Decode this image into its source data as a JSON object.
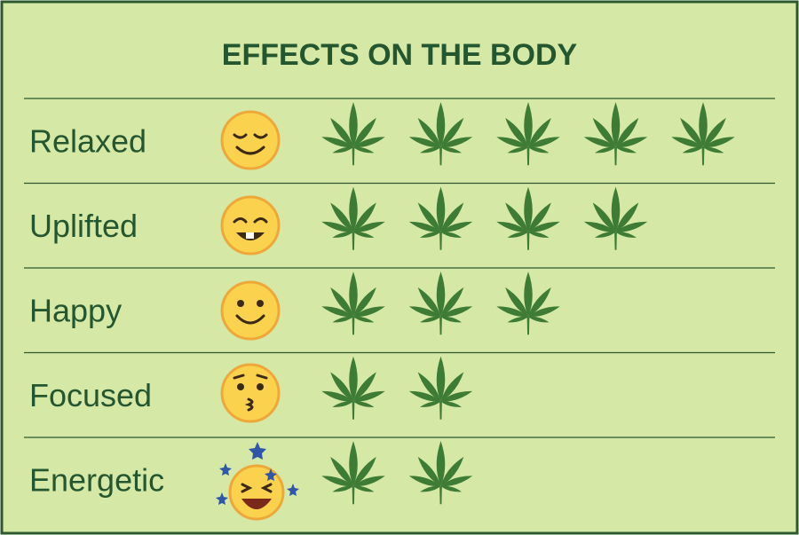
{
  "chart_data": {
    "type": "pictograph",
    "title": "EFFECTS ON THE BODY",
    "categories": [
      "Relaxed",
      "Uplifted",
      "Happy",
      "Focused",
      "Energetic"
    ],
    "values": [
      5,
      4,
      3,
      2,
      2
    ],
    "color": "#3e7b35"
  }
}
